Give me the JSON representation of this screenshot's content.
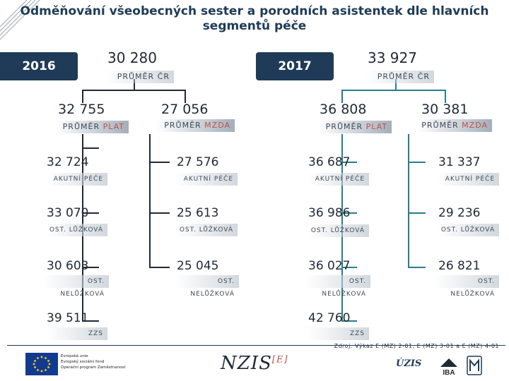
{
  "title": "Odměňování všeobecných sester a porodních asistentek dle hlavních segmentů péče",
  "y2016": {
    "year": "2016",
    "avg_value": "30 280",
    "avg_label": "PRŮMĚR ČR",
    "plat": {
      "value": "32 755",
      "label_a": "PRŮMĚR ",
      "label_b": "PLAT"
    },
    "mzda": {
      "value": "27 056",
      "label_a": "PRŮMĚR ",
      "label_b": "MZDA"
    },
    "plat_items": [
      {
        "value": "32 724",
        "label": "AKUTNÍ PÉČE"
      },
      {
        "value": "33 070",
        "label": "OST. LŮŽKOVÁ"
      },
      {
        "value": "30 603",
        "label": "OST. NELŮŽKOVÁ"
      },
      {
        "value": "39 511",
        "label": "ZZS"
      }
    ],
    "mzda_items": [
      {
        "value": "27 576",
        "label": "AKUTNÍ PÉČE"
      },
      {
        "value": "25 613",
        "label": "OST. LŮŽKOVÁ"
      },
      {
        "value": "25 045",
        "label": "OST. NELŮŽKOVÁ"
      }
    ]
  },
  "y2017": {
    "year": "2017",
    "avg_value": "33 927",
    "avg_label": "PRŮMĚR ČR",
    "plat": {
      "value": "36 808",
      "label_a": "PRŮMĚR ",
      "label_b": "PLAT"
    },
    "mzda": {
      "value": "30 381",
      "label_a": "PRŮMĚR ",
      "label_b": "MZDA"
    },
    "plat_items": [
      {
        "value": "36 687",
        "label": "AKUTNÍ PÉČE"
      },
      {
        "value": "36 986",
        "label": "OST. LŮŽKOVÁ"
      },
      {
        "value": "36 027",
        "label": "OST. NELŮŽKOVÁ"
      },
      {
        "value": "42 760",
        "label": "ZZS"
      }
    ],
    "mzda_items": [
      {
        "value": "31 337",
        "label": "AKUTNÍ PÉČE"
      },
      {
        "value": "29 236",
        "label": "OST. LŮŽKOVÁ"
      },
      {
        "value": "26 821",
        "label": "OST. NELŮŽKOVÁ"
      }
    ]
  },
  "footer": {
    "source": "Zdroj: Výkaz E (MZ) 2-01, E (MZ) 3-01 a E (MZ) 4-01",
    "eu_lines": [
      "Evropská unie",
      "Evropský sociální fond",
      "Operační program Zaměstnanost"
    ],
    "nzis": "NZIS",
    "nzis_sup": "[E]",
    "uzis": "ÚZIS",
    "iba": "IBA"
  },
  "colors": {
    "navy": "#1f3b57",
    "red": "#c0504d",
    "teal": "#2a7d8c",
    "connector": "#1f2a36"
  }
}
